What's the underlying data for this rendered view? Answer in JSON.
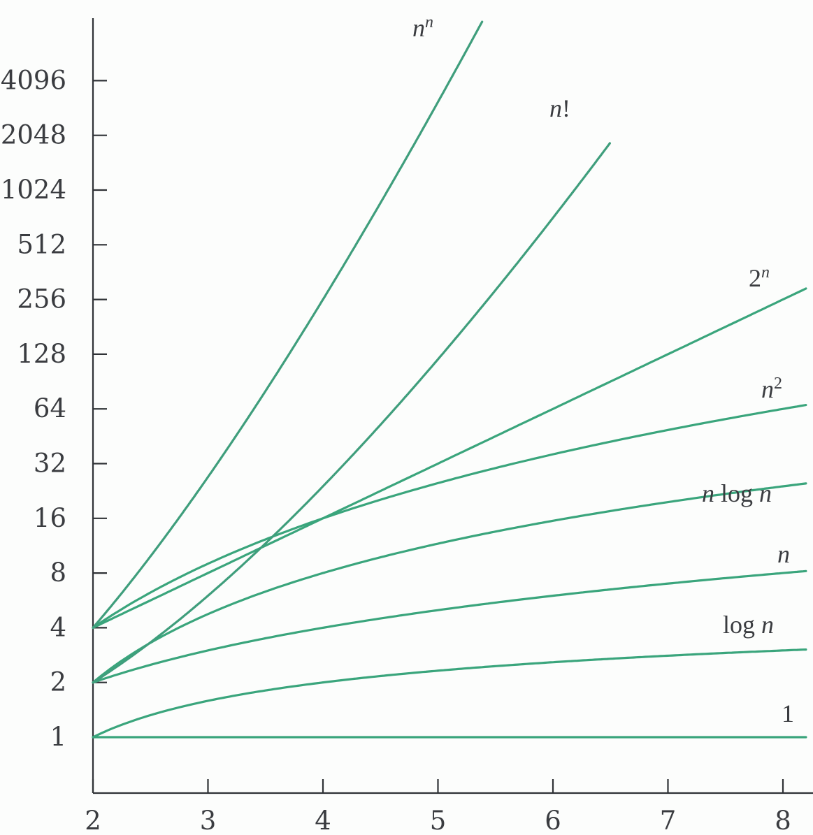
{
  "chart_data": {
    "type": "line",
    "title": "",
    "xlabel": "",
    "ylabel": "",
    "x_ticks": [
      2,
      3,
      4,
      5,
      6,
      7,
      8
    ],
    "y_ticks": [
      1,
      2,
      4,
      8,
      16,
      32,
      64,
      128,
      256,
      512,
      1024,
      2048,
      4096
    ],
    "y_tick_labels": [
      "1",
      "2",
      "4",
      "8",
      "16",
      "32",
      "64",
      "128",
      "256",
      "512",
      "1024",
      "2048",
      "4096"
    ],
    "x_tick_labels": [
      "2",
      "3",
      "4",
      "5",
      "6",
      "7",
      "8"
    ],
    "xlim": [
      2,
      8.2
    ],
    "ylim": [
      1,
      9000
    ],
    "y_scale": "log2",
    "grid": false,
    "legend": "labels placed at line ends",
    "line_color": "#3aa57c",
    "steep_line_color": "#3f9e7c",
    "series": [
      {
        "name": "1",
        "label_parts": [
          {
            "t": "1",
            "italic": false
          }
        ],
        "func": "const",
        "x": [
          2,
          3,
          4,
          5,
          6,
          7,
          8
        ],
        "values": [
          1,
          1,
          1,
          1,
          1,
          1,
          1
        ]
      },
      {
        "name": "log n",
        "label_parts": [
          {
            "t": "log ",
            "italic": false
          },
          {
            "t": "n",
            "italic": true
          }
        ],
        "func": "log2",
        "x": [
          2,
          3,
          4,
          5,
          6,
          7,
          8
        ],
        "values": [
          1,
          1.585,
          2,
          2.322,
          2.585,
          2.807,
          3
        ]
      },
      {
        "name": "n",
        "label_parts": [
          {
            "t": "n",
            "italic": true
          }
        ],
        "func": "linear",
        "x": [
          2,
          3,
          4,
          5,
          6,
          7,
          8
        ],
        "values": [
          2,
          3,
          4,
          5,
          6,
          7,
          8
        ]
      },
      {
        "name": "n log n",
        "label_parts": [
          {
            "t": "n",
            "italic": true
          },
          {
            "t": " log ",
            "italic": false
          },
          {
            "t": "n",
            "italic": true
          }
        ],
        "func": "nlogn",
        "x": [
          2,
          3,
          4,
          5,
          6,
          7,
          8
        ],
        "values": [
          2,
          4.75,
          8,
          11.61,
          15.51,
          19.65,
          24
        ]
      },
      {
        "name": "n²",
        "label_parts": [
          {
            "t": "n",
            "italic": true
          },
          {
            "t": "2",
            "italic": false,
            "sup": true
          }
        ],
        "func": "square",
        "x": [
          2,
          3,
          4,
          5,
          6,
          7,
          8
        ],
        "values": [
          4,
          9,
          16,
          25,
          36,
          49,
          64
        ]
      },
      {
        "name": "2ⁿ",
        "label_parts": [
          {
            "t": "2",
            "italic": false
          },
          {
            "t": "n",
            "italic": true,
            "sup": true
          }
        ],
        "func": "exp2",
        "x": [
          2,
          3,
          4,
          5,
          6,
          7,
          8
        ],
        "values": [
          4,
          8,
          16,
          32,
          64,
          128,
          256
        ]
      },
      {
        "name": "n!",
        "label_parts": [
          {
            "t": "n",
            "italic": true
          },
          {
            "t": "!",
            "italic": false
          }
        ],
        "func": "factorial",
        "x": [
          2,
          3,
          4,
          5,
          6,
          6.5
        ],
        "values": [
          2,
          6,
          24,
          120,
          720,
          1871
        ]
      },
      {
        "name": "nⁿ",
        "label_parts": [
          {
            "t": "n",
            "italic": true
          },
          {
            "t": "n",
            "italic": true,
            "sup": true
          }
        ],
        "func": "nn",
        "x": [
          2,
          3,
          4,
          5,
          5.4
        ],
        "values": [
          4,
          27,
          256,
          3125,
          9000
        ]
      }
    ]
  }
}
